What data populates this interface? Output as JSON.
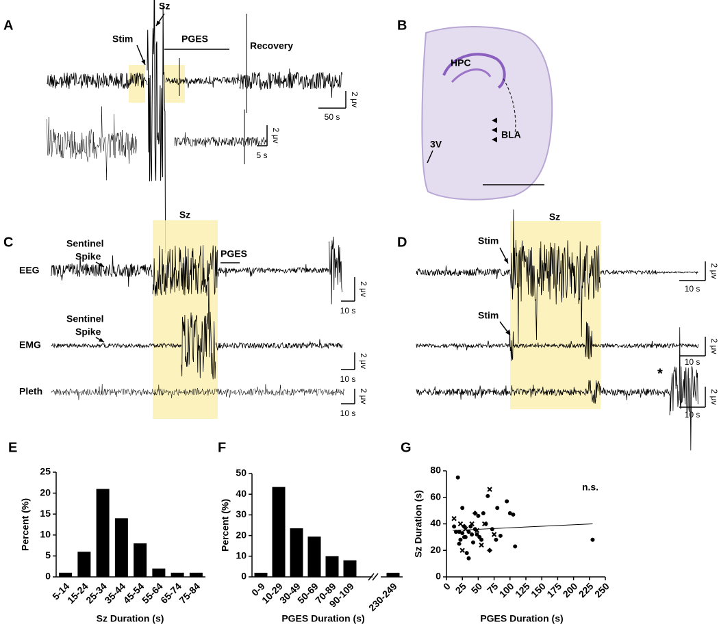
{
  "panels": {
    "A": {
      "label": "A",
      "sz": "Sz",
      "stim": "Stim",
      "pges": "PGES",
      "recovery": "Recovery",
      "scale1_v": "2 μv",
      "scale1_t": "50 s",
      "scale2_v": "2 μv",
      "scale2_t": "5 s"
    },
    "B": {
      "label": "B",
      "hpc": "HPC",
      "bla": "BLA",
      "v3": "3V"
    },
    "C": {
      "label": "C",
      "sz": "Sz",
      "pges": "PGES",
      "eeg": "EEG",
      "emg": "EMG",
      "pleth": "Pleth",
      "sentinel_eeg": [
        "Sentinel",
        "Spike"
      ],
      "sentinel_emg": [
        "Sentinel",
        "Spike"
      ],
      "scale1_v": "2 μv",
      "scale1_t": "10 s",
      "scale2_v": "2 μv",
      "scale2_t": "10 s",
      "scale3_v": "2 μv",
      "scale3_t": "10 s"
    },
    "D": {
      "label": "D",
      "sz": "Sz",
      "stim1": "Stim",
      "stim2": "Stim",
      "star": "*",
      "scale1_v": "2 μv",
      "scale1_t": "10 s",
      "scale2_v": "2 μv",
      "scale2_t": "10 s",
      "scale3_v": "2 μv",
      "scale3_t": "10 s"
    }
  },
  "chart_data": [
    {
      "type": "bar",
      "panel_label": "E",
      "xlabel": "Sz Duration (s)",
      "ylabel": "Percent (%)",
      "categories": [
        "5-14",
        "15-24",
        "25-34",
        "35-44",
        "45-54",
        "55-64",
        "65-74",
        "75-84"
      ],
      "values": [
        1,
        6,
        21,
        14,
        8,
        2,
        1,
        1
      ],
      "color": "#000000",
      "ylim": [
        0,
        25
      ],
      "yticks": [
        0,
        5,
        10,
        15,
        20,
        25
      ]
    },
    {
      "type": "bar",
      "panel_label": "F",
      "xlabel": "PGES Duration (s)",
      "ylabel": "Percent (%)",
      "categories": [
        "0-9",
        "10-29",
        "30-49",
        "50-69",
        "70-89",
        "90-109",
        "230-249"
      ],
      "values": [
        2,
        43.5,
        23.5,
        19.5,
        10,
        8,
        2
      ],
      "color": "#000000",
      "ylim": [
        0,
        50
      ],
      "yticks": [
        0,
        10,
        20,
        30,
        40,
        50
      ],
      "axis_break": true
    },
    {
      "type": "scatter",
      "panel_label": "G",
      "xlabel": "PGES Duration (s)",
      "ylabel": "Sz Duration (s)",
      "annotation": "n.s.",
      "xlim": [
        0,
        250
      ],
      "xticks": [
        0,
        25,
        50,
        75,
        100,
        125,
        150,
        175,
        200,
        225,
        250
      ],
      "ylim": [
        0,
        80
      ],
      "yticks": [
        0,
        20,
        40,
        60,
        80
      ],
      "series": [
        {
          "marker": "circle",
          "color": "#000000",
          "x": [
            18,
            15,
            20,
            22,
            25,
            25,
            28,
            30,
            32,
            35,
            35,
            38,
            40,
            42,
            45,
            48,
            50,
            52,
            55,
            58,
            62,
            65,
            72,
            78,
            80,
            85,
            95,
            100,
            105,
            108,
            230,
            28,
            20,
            12
          ],
          "y": [
            75,
            34,
            25,
            28,
            33,
            52,
            38,
            30,
            18,
            14,
            34,
            38,
            32,
            26,
            36,
            32,
            46,
            30,
            28,
            48,
            40,
            61,
            36,
            28,
            52,
            31,
            57,
            48,
            47,
            23,
            28,
            30,
            34,
            38
          ]
        },
        {
          "marker": "cross",
          "color": "#000000",
          "x": [
            12,
            22,
            25,
            30,
            40,
            55,
            60,
            68,
            75,
            48
          ],
          "y": [
            44,
            40,
            20,
            36,
            40,
            24,
            40,
            66,
            32,
            35
          ]
        },
        {
          "marker": "diamond",
          "color": "#000000",
          "x": [
            45,
            68,
            28
          ],
          "y": [
            48,
            20,
            38
          ]
        }
      ],
      "fit_line": {
        "x": [
          10,
          230
        ],
        "y": [
          35,
          40
        ]
      }
    }
  ]
}
